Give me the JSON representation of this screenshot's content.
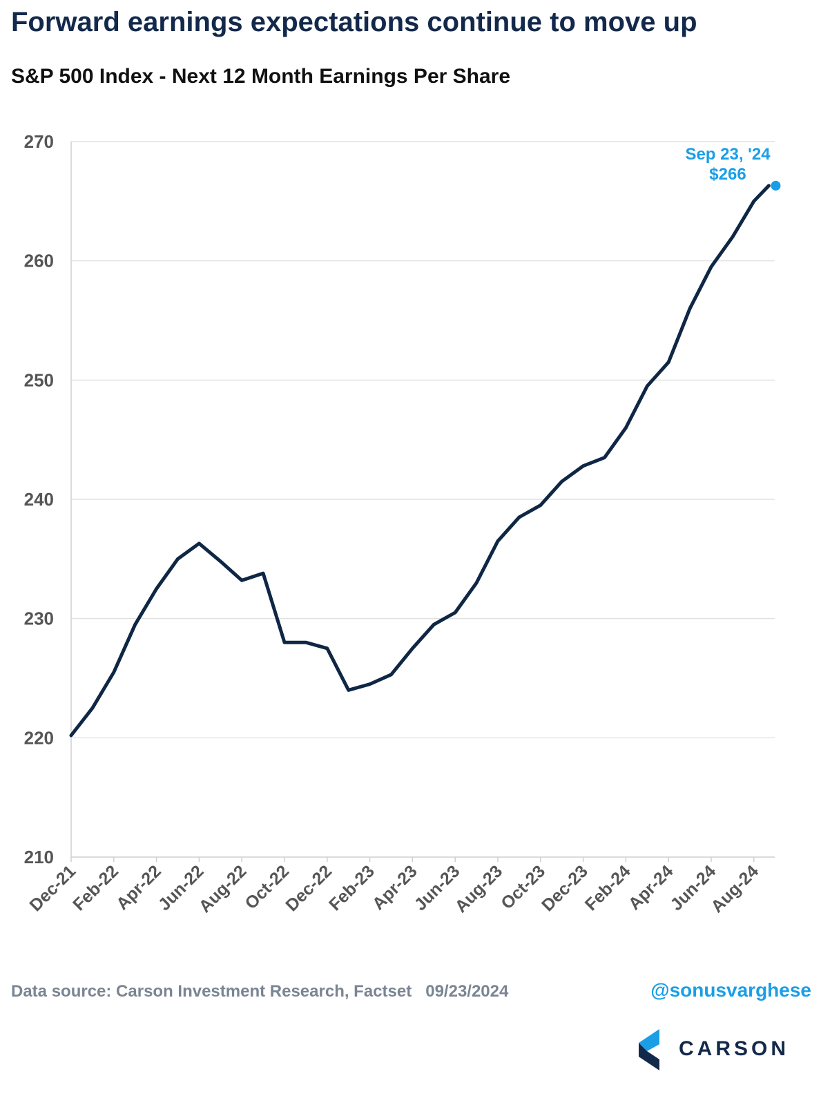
{
  "title": "Forward earnings expectations continue to move up",
  "subtitle": "S&P 500 Index - Next 12 Month Earnings Per Share",
  "footer": {
    "source": "Data source: Carson Investment Research, Factset",
    "date": "09/23/2024",
    "handle": "@sonusvarghese",
    "logo_text": "CARSON"
  },
  "colors": {
    "line": "#0f2744",
    "accent": "#1a9ee6",
    "grid": "#dcdcdc"
  },
  "chart_data": {
    "type": "line",
    "ylim": [
      210,
      270
    ],
    "yticks": [
      210,
      220,
      230,
      240,
      250,
      260,
      270
    ],
    "grid": "horizontal",
    "x_tick_labels": [
      "Dec-21",
      "Feb-22",
      "Apr-22",
      "Jun-22",
      "Aug-22",
      "Oct-22",
      "Dec-22",
      "Feb-23",
      "Apr-23",
      "Jun-23",
      "Aug-23",
      "Oct-23",
      "Dec-23",
      "Feb-24",
      "Apr-24",
      "Jun-24",
      "Aug-24"
    ],
    "x": [
      "Dec-21",
      "Jan-22",
      "Feb-22",
      "Mar-22",
      "Apr-22",
      "May-22",
      "Jun-22",
      "Jul-22",
      "Aug-22",
      "Sep-22",
      "Oct-22",
      "Nov-22",
      "Dec-22",
      "Jan-23",
      "Feb-23",
      "Mar-23",
      "Apr-23",
      "May-23",
      "Jun-23",
      "Jul-23",
      "Aug-23",
      "Sep-23",
      "Oct-23",
      "Nov-23",
      "Dec-23",
      "Jan-24",
      "Feb-24",
      "Mar-24",
      "Apr-24",
      "May-24",
      "Jun-24",
      "Jul-24",
      "Aug-24",
      "Sep-24"
    ],
    "series": [
      {
        "values": [
          220.2,
          222.5,
          225.5,
          229.5,
          232.5,
          235.0,
          236.3,
          234.8,
          233.2,
          233.8,
          228.0,
          228.0,
          227.5,
          224.0,
          224.5,
          225.3,
          227.5,
          229.5,
          230.5,
          233.0,
          236.5,
          238.5,
          239.5,
          241.5,
          242.8,
          243.5,
          246.0,
          249.5,
          251.5,
          256.0,
          259.5,
          262.0,
          265.0,
          266.3
        ]
      }
    ],
    "annotation": {
      "date": "Sep 23, '24",
      "value": "$266"
    }
  }
}
